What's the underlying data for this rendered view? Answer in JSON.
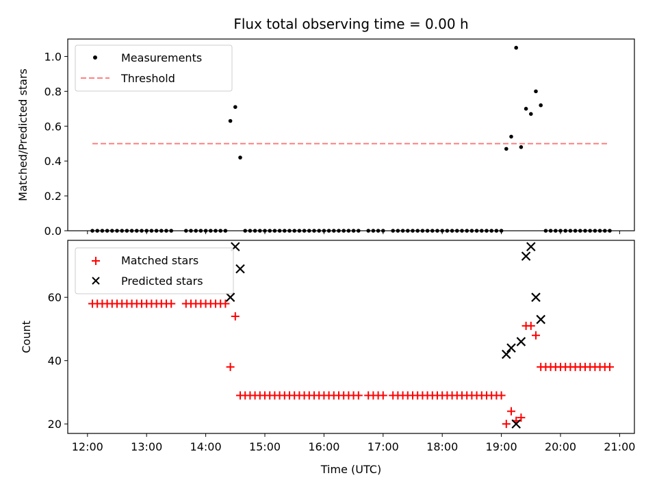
{
  "chart_data": [
    {
      "type": "scatter",
      "title": "Flux total observing time = 0.00 h",
      "ylabel": "Matched/Predicted stars",
      "xlabel": "",
      "xlim": [
        "11:40",
        "21:15"
      ],
      "ylim": [
        0,
        1.1
      ],
      "yticks": [
        "0.0",
        "0.2",
        "0.4",
        "0.6",
        "0.8",
        "1.0"
      ],
      "legend": {
        "placement": "top-left",
        "entries": [
          "Measurements",
          "Threshold"
        ]
      },
      "colors": {
        "measurements": "#000000",
        "threshold": "#ff7f7f"
      },
      "threshold": {
        "name": "Threshold",
        "y": 0.5,
        "x_range": [
          "12:05",
          "20:50"
        ]
      },
      "series": [
        {
          "name": "Measurements",
          "points": [
            [
              "12:05",
              0
            ],
            [
              "12:10",
              0
            ],
            [
              "12:15",
              0
            ],
            [
              "12:20",
              0
            ],
            [
              "12:25",
              0
            ],
            [
              "12:30",
              0
            ],
            [
              "12:35",
              0
            ],
            [
              "12:40",
              0
            ],
            [
              "12:45",
              0
            ],
            [
              "12:50",
              0
            ],
            [
              "12:55",
              0
            ],
            [
              "13:00",
              0
            ],
            [
              "13:05",
              0
            ],
            [
              "13:10",
              0
            ],
            [
              "13:15",
              0
            ],
            [
              "13:20",
              0
            ],
            [
              "13:25",
              0
            ],
            [
              "13:40",
              0
            ],
            [
              "13:45",
              0
            ],
            [
              "13:50",
              0
            ],
            [
              "13:55",
              0
            ],
            [
              "14:00",
              0
            ],
            [
              "14:05",
              0
            ],
            [
              "14:10",
              0
            ],
            [
              "14:15",
              0
            ],
            [
              "14:20",
              0
            ],
            [
              "14:25",
              0.63
            ],
            [
              "14:30",
              0.71
            ],
            [
              "14:35",
              0.42
            ],
            [
              "14:40",
              0
            ],
            [
              "14:45",
              0
            ],
            [
              "14:50",
              0
            ],
            [
              "14:55",
              0
            ],
            [
              "15:00",
              0
            ],
            [
              "15:05",
              0
            ],
            [
              "15:10",
              0
            ],
            [
              "15:15",
              0
            ],
            [
              "15:20",
              0
            ],
            [
              "15:25",
              0
            ],
            [
              "15:30",
              0
            ],
            [
              "15:35",
              0
            ],
            [
              "15:40",
              0
            ],
            [
              "15:45",
              0
            ],
            [
              "15:50",
              0
            ],
            [
              "15:55",
              0
            ],
            [
              "16:00",
              0
            ],
            [
              "16:05",
              0
            ],
            [
              "16:10",
              0
            ],
            [
              "16:15",
              0
            ],
            [
              "16:20",
              0
            ],
            [
              "16:25",
              0
            ],
            [
              "16:30",
              0
            ],
            [
              "16:35",
              0
            ],
            [
              "16:45",
              0
            ],
            [
              "16:50",
              0
            ],
            [
              "16:55",
              0
            ],
            [
              "17:00",
              0
            ],
            [
              "17:10",
              0
            ],
            [
              "17:15",
              0
            ],
            [
              "17:20",
              0
            ],
            [
              "17:25",
              0
            ],
            [
              "17:30",
              0
            ],
            [
              "17:35",
              0
            ],
            [
              "17:40",
              0
            ],
            [
              "17:45",
              0
            ],
            [
              "17:50",
              0
            ],
            [
              "17:55",
              0
            ],
            [
              "18:00",
              0
            ],
            [
              "18:05",
              0
            ],
            [
              "18:10",
              0
            ],
            [
              "18:15",
              0
            ],
            [
              "18:20",
              0
            ],
            [
              "18:25",
              0
            ],
            [
              "18:30",
              0
            ],
            [
              "18:35",
              0
            ],
            [
              "18:40",
              0
            ],
            [
              "18:45",
              0
            ],
            [
              "18:50",
              0
            ],
            [
              "18:55",
              0
            ],
            [
              "19:00",
              0
            ],
            [
              "19:05",
              0.47
            ],
            [
              "19:10",
              0.54
            ],
            [
              "19:15",
              1.05
            ],
            [
              "19:20",
              0.48
            ],
            [
              "19:25",
              0.7
            ],
            [
              "19:30",
              0.67
            ],
            [
              "19:35",
              0.8
            ],
            [
              "19:40",
              0.72
            ],
            [
              "19:45",
              0
            ],
            [
              "19:50",
              0
            ],
            [
              "19:55",
              0
            ],
            [
              "20:00",
              0
            ],
            [
              "20:05",
              0
            ],
            [
              "20:10",
              0
            ],
            [
              "20:15",
              0
            ],
            [
              "20:20",
              0
            ],
            [
              "20:25",
              0
            ],
            [
              "20:30",
              0
            ],
            [
              "20:35",
              0
            ],
            [
              "20:40",
              0
            ],
            [
              "20:45",
              0
            ],
            [
              "20:50",
              0
            ]
          ]
        }
      ]
    },
    {
      "type": "scatter",
      "title": "",
      "ylabel": "Count",
      "xlabel": "Time (UTC)",
      "xlim": [
        "11:40",
        "21:15"
      ],
      "ylim": [
        17,
        78
      ],
      "yticks": [
        "20",
        "40",
        "60"
      ],
      "xticks": [
        "12:00",
        "13:00",
        "14:00",
        "15:00",
        "16:00",
        "17:00",
        "18:00",
        "19:00",
        "20:00",
        "21:00"
      ],
      "legend": {
        "placement": "top-left",
        "entries": [
          "Matched stars",
          "Predicted stars"
        ]
      },
      "colors": {
        "matched": "#ff0000",
        "predicted": "#000000"
      },
      "series": [
        {
          "name": "Matched stars",
          "marker": "plus",
          "points": [
            [
              "12:05",
              58
            ],
            [
              "12:10",
              58
            ],
            [
              "12:15",
              58
            ],
            [
              "12:20",
              58
            ],
            [
              "12:25",
              58
            ],
            [
              "12:30",
              58
            ],
            [
              "12:35",
              58
            ],
            [
              "12:40",
              58
            ],
            [
              "12:45",
              58
            ],
            [
              "12:50",
              58
            ],
            [
              "12:55",
              58
            ],
            [
              "13:00",
              58
            ],
            [
              "13:05",
              58
            ],
            [
              "13:10",
              58
            ],
            [
              "13:15",
              58
            ],
            [
              "13:20",
              58
            ],
            [
              "13:25",
              58
            ],
            [
              "13:40",
              58
            ],
            [
              "13:45",
              58
            ],
            [
              "13:50",
              58
            ],
            [
              "13:55",
              58
            ],
            [
              "14:00",
              58
            ],
            [
              "14:05",
              58
            ],
            [
              "14:10",
              58
            ],
            [
              "14:15",
              58
            ],
            [
              "14:20",
              58
            ],
            [
              "14:25",
              38
            ],
            [
              "14:30",
              54
            ],
            [
              "14:35",
              29
            ],
            [
              "14:40",
              29
            ],
            [
              "14:45",
              29
            ],
            [
              "14:50",
              29
            ],
            [
              "14:55",
              29
            ],
            [
              "15:00",
              29
            ],
            [
              "15:05",
              29
            ],
            [
              "15:10",
              29
            ],
            [
              "15:15",
              29
            ],
            [
              "15:20",
              29
            ],
            [
              "15:25",
              29
            ],
            [
              "15:30",
              29
            ],
            [
              "15:35",
              29
            ],
            [
              "15:40",
              29
            ],
            [
              "15:45",
              29
            ],
            [
              "15:50",
              29
            ],
            [
              "15:55",
              29
            ],
            [
              "16:00",
              29
            ],
            [
              "16:05",
              29
            ],
            [
              "16:10",
              29
            ],
            [
              "16:15",
              29
            ],
            [
              "16:20",
              29
            ],
            [
              "16:25",
              29
            ],
            [
              "16:30",
              29
            ],
            [
              "16:35",
              29
            ],
            [
              "16:45",
              29
            ],
            [
              "16:50",
              29
            ],
            [
              "16:55",
              29
            ],
            [
              "17:00",
              29
            ],
            [
              "17:10",
              29
            ],
            [
              "17:15",
              29
            ],
            [
              "17:20",
              29
            ],
            [
              "17:25",
              29
            ],
            [
              "17:30",
              29
            ],
            [
              "17:35",
              29
            ],
            [
              "17:40",
              29
            ],
            [
              "17:45",
              29
            ],
            [
              "17:50",
              29
            ],
            [
              "17:55",
              29
            ],
            [
              "18:00",
              29
            ],
            [
              "18:05",
              29
            ],
            [
              "18:10",
              29
            ],
            [
              "18:15",
              29
            ],
            [
              "18:20",
              29
            ],
            [
              "18:25",
              29
            ],
            [
              "18:30",
              29
            ],
            [
              "18:35",
              29
            ],
            [
              "18:40",
              29
            ],
            [
              "18:45",
              29
            ],
            [
              "18:50",
              29
            ],
            [
              "18:55",
              29
            ],
            [
              "19:00",
              29
            ],
            [
              "19:05",
              20
            ],
            [
              "19:10",
              24
            ],
            [
              "19:15",
              21
            ],
            [
              "19:20",
              22
            ],
            [
              "19:25",
              51
            ],
            [
              "19:30",
              51
            ],
            [
              "19:35",
              48
            ],
            [
              "19:40",
              38
            ],
            [
              "19:45",
              38
            ],
            [
              "19:50",
              38
            ],
            [
              "19:55",
              38
            ],
            [
              "20:00",
              38
            ],
            [
              "20:05",
              38
            ],
            [
              "20:10",
              38
            ],
            [
              "20:15",
              38
            ],
            [
              "20:20",
              38
            ],
            [
              "20:25",
              38
            ],
            [
              "20:30",
              38
            ],
            [
              "20:35",
              38
            ],
            [
              "20:40",
              38
            ],
            [
              "20:45",
              38
            ],
            [
              "20:50",
              38
            ]
          ]
        },
        {
          "name": "Predicted stars",
          "marker": "x",
          "points": [
            [
              "14:25",
              60
            ],
            [
              "14:30",
              76
            ],
            [
              "14:35",
              69
            ],
            [
              "19:05",
              42
            ],
            [
              "19:10",
              44
            ],
            [
              "19:15",
              20
            ],
            [
              "19:20",
              46
            ],
            [
              "19:25",
              73
            ],
            [
              "19:30",
              76
            ],
            [
              "19:35",
              60
            ],
            [
              "19:40",
              53
            ]
          ]
        }
      ]
    }
  ]
}
